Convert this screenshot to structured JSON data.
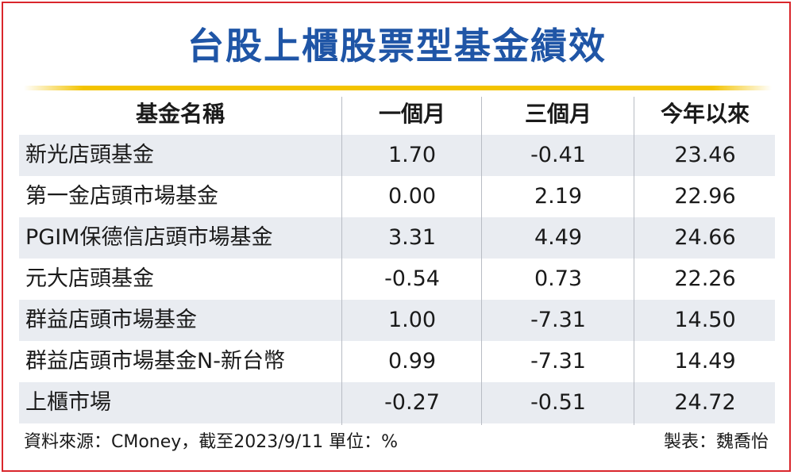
{
  "title": "台股上櫃股票型基金績效",
  "table": {
    "headers": [
      "基金名稱",
      "一個月",
      "三個月",
      "今年以來"
    ],
    "rows": [
      [
        "新光店頭基金",
        "1.70",
        "-0.41",
        "23.46"
      ],
      [
        "第一金店頭市場基金",
        "0.00",
        "2.19",
        "22.96"
      ],
      [
        "PGIM保德信店頭市場基金",
        "3.31",
        "4.49",
        "24.66"
      ],
      [
        "元大店頭基金",
        "-0.54",
        "0.73",
        "22.26"
      ],
      [
        "群益店頭市場基金",
        "1.00",
        "-7.31",
        "14.50"
      ],
      [
        "群益店頭市場基金N-新台幣",
        "0.99",
        "-7.31",
        "14.49"
      ],
      [
        "上櫃市場",
        "-0.27",
        "-0.51",
        "24.72"
      ]
    ]
  },
  "footer": {
    "source": "資料來源：CMoney，截至2023/9/11  單位：%",
    "credit": "製表：魏喬怡"
  },
  "colors": {
    "title": "#1f55a6",
    "rule": "#f3c300",
    "frame": "#d9262c",
    "row_shade": "#e9ecf1"
  }
}
